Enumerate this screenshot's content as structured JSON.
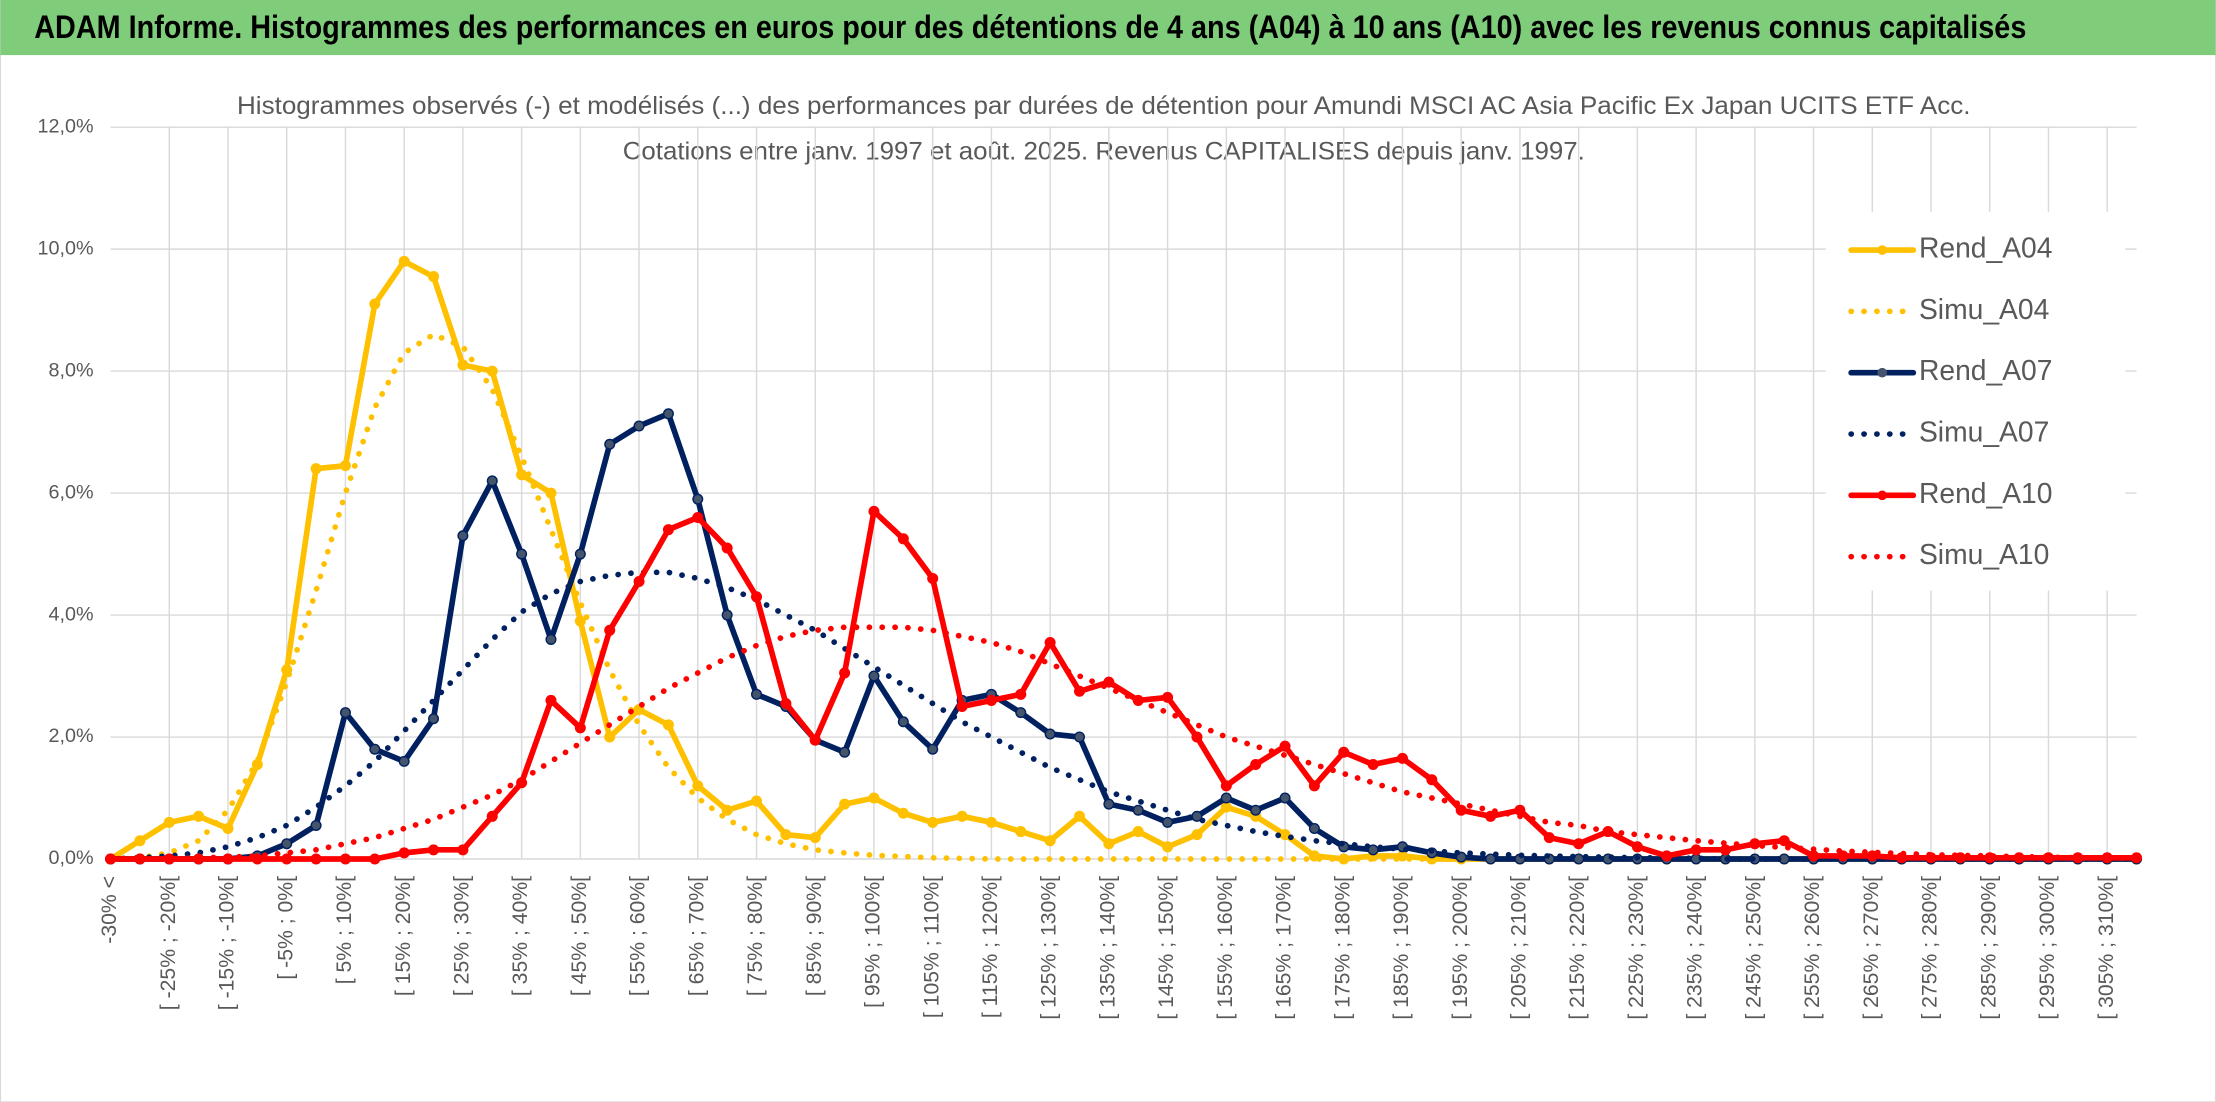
{
  "header": {
    "title": "ADAM Informe. Histogrammes des performances en euros pour des détentions de 4 ans (A04) à 10 ans (A10) avec les revenus connus capitalisés"
  },
  "chart_data": {
    "type": "line",
    "title": "Histogrammes observés (-) et modélisés (...) des performances par durées de détention pour Amundi MSCI AC Asia Pacific Ex Japan UCITS ETF Acc.",
    "subtitle": "Cotations entre janv. 1997 et août. 2025. Revenus CAPITALISES depuis janv. 1997.",
    "categories": [
      "-30% <",
      null,
      "[ -25% ; -20%[",
      null,
      "[ -15% ; -10%[",
      null,
      "[ -5% ; 0%[",
      null,
      "[ 5% ; 10%[",
      null,
      "[ 15% ; 20%[",
      null,
      "[ 25% ; 30%[",
      null,
      "[ 35% ; 40%[",
      null,
      "[ 45% ; 50%[",
      null,
      "[ 55% ; 60%[",
      null,
      "[ 65% ; 70%[",
      null,
      "[ 75% ; 80%[",
      null,
      "[ 85% ; 90%[",
      null,
      "[ 95% ; 100%[",
      null,
      "[ 105% ; 110%[",
      null,
      "[ 115% ; 120%[",
      null,
      "[ 125% ; 130%[",
      null,
      "[ 135% ; 140%[",
      null,
      "[ 145% ; 150%[",
      null,
      "[ 155% ; 160%[",
      null,
      "[ 165% ; 170%[",
      null,
      "[ 175% ; 180%[",
      null,
      "[ 185% ; 190%[",
      null,
      "[ 195% ; 200%[",
      null,
      "[ 205% ; 210%[",
      null,
      "[ 215% ; 220%[",
      null,
      "[ 225% ; 230%[",
      null,
      "[ 235% ; 240%[",
      null,
      "[ 245% ; 250%[",
      null,
      "[ 255% ; 260%[",
      null,
      "[ 265% ; 270%[",
      null,
      "[ 275% ; 280%[",
      null,
      "[ 285% ; 290%[",
      null,
      "[ 295% ; 300%[",
      null,
      "[ 305% ; 310%[",
      null
    ],
    "ylim": [
      0,
      12
    ],
    "yticks": [
      {
        "value": 0,
        "label": "0,0%"
      },
      {
        "value": 2,
        "label": "2,0%"
      },
      {
        "value": 4,
        "label": "4,0%"
      },
      {
        "value": 6,
        "label": "6,0%"
      },
      {
        "value": 8,
        "label": "8,0%"
      },
      {
        "value": 10,
        "label": "10,0%"
      },
      {
        "value": 12,
        "label": "12,0%"
      }
    ],
    "grid": true,
    "legend": "right",
    "series": [
      {
        "name": "Rend_A04",
        "color": "#FFC000",
        "line_style": "solid",
        "markers": true,
        "values": [
          0,
          0.3,
          0.6,
          0.7,
          0.5,
          1.55,
          3.1,
          6.4,
          6.45,
          9.1,
          9.8,
          9.55,
          8.1,
          8.0,
          6.3,
          6.0,
          3.9,
          2.0,
          2.45,
          2.2,
          1.2,
          0.8,
          0.95,
          0.4,
          0.35,
          0.9,
          1.0,
          0.75,
          0.6,
          0.7,
          0.6,
          0.45,
          0.3,
          0.7,
          0.25,
          0.45,
          0.2,
          0.4,
          0.85,
          0.7,
          0.4,
          0.05,
          0,
          0.05,
          0.05,
          0,
          0,
          0,
          0,
          0,
          0,
          0,
          0,
          0,
          0,
          0,
          0,
          0,
          0,
          0,
          0,
          0,
          0,
          0,
          0,
          0,
          0,
          0,
          0,
          0
        ]
      },
      {
        "name": "Simu_A04",
        "color": "#FFC000",
        "line_style": "dotted",
        "markers": false,
        "values": [
          0,
          0.02,
          0.1,
          0.3,
          0.8,
          1.6,
          2.9,
          4.4,
          6.0,
          7.4,
          8.3,
          8.6,
          8.4,
          7.7,
          6.6,
          5.4,
          4.2,
          3.1,
          2.2,
          1.5,
          1.0,
          0.65,
          0.4,
          0.25,
          0.15,
          0.1,
          0.06,
          0.04,
          0.02,
          0.01,
          0,
          0,
          0,
          0,
          0,
          0,
          0,
          0,
          0,
          0,
          0,
          0,
          0,
          0,
          0,
          0,
          0,
          0,
          0,
          0,
          0,
          0,
          0,
          0,
          0,
          0,
          0,
          0,
          0,
          0,
          0,
          0,
          0,
          0,
          0,
          0,
          0,
          0,
          0,
          0
        ]
      },
      {
        "name": "Rend_A07",
        "color": "#002060",
        "line_style": "solid",
        "markers": true,
        "values": [
          0,
          0,
          0,
          0,
          0,
          0.05,
          0.25,
          0.55,
          2.4,
          1.8,
          1.6,
          2.3,
          5.3,
          6.2,
          5.0,
          3.6,
          5.0,
          6.8,
          7.1,
          7.3,
          5.9,
          4.0,
          2.7,
          2.5,
          1.95,
          1.75,
          3.0,
          2.25,
          1.8,
          2.6,
          2.7,
          2.4,
          2.05,
          2.0,
          0.9,
          0.8,
          0.6,
          0.7,
          1.0,
          0.8,
          1.0,
          0.5,
          0.2,
          0.15,
          0.2,
          0.1,
          0.03,
          0,
          0,
          0,
          0,
          0,
          0,
          0,
          0,
          0,
          0,
          0,
          0,
          0,
          0,
          0,
          0,
          0,
          0,
          0,
          0,
          0,
          0,
          0
        ]
      },
      {
        "name": "Simu_A07",
        "color": "#002060",
        "line_style": "dotted",
        "markers": false,
        "values": [
          0,
          0.02,
          0.05,
          0.1,
          0.2,
          0.35,
          0.55,
          0.85,
          1.2,
          1.6,
          2.1,
          2.6,
          3.1,
          3.6,
          4.05,
          4.35,
          4.55,
          4.65,
          4.7,
          4.7,
          4.6,
          4.45,
          4.25,
          4.0,
          3.75,
          3.45,
          3.15,
          2.85,
          2.55,
          2.25,
          2.0,
          1.75,
          1.5,
          1.3,
          1.1,
          0.95,
          0.8,
          0.65,
          0.55,
          0.45,
          0.37,
          0.3,
          0.25,
          0.2,
          0.16,
          0.13,
          0.1,
          0.08,
          0.06,
          0.05,
          0.04,
          0.03,
          0.02,
          0.02,
          0.01,
          0,
          0,
          0,
          0,
          0,
          0,
          0,
          0,
          0,
          0,
          0,
          0,
          0,
          0,
          0
        ]
      },
      {
        "name": "Rend_A10",
        "color": "#FF0000",
        "line_style": "solid",
        "markers": true,
        "values": [
          0,
          0,
          0,
          0,
          0,
          0,
          0,
          0,
          0,
          0,
          0.1,
          0.15,
          0.15,
          0.7,
          1.25,
          2.6,
          2.15,
          3.75,
          4.55,
          5.4,
          5.6,
          5.1,
          4.3,
          2.55,
          1.95,
          3.05,
          5.7,
          5.25,
          4.6,
          2.5,
          2.6,
          2.7,
          3.55,
          2.75,
          2.9,
          2.6,
          2.65,
          2.0,
          1.2,
          1.55,
          1.85,
          1.2,
          1.75,
          1.55,
          1.65,
          1.3,
          0.8,
          0.7,
          0.8,
          0.35,
          0.25,
          0.45,
          0.2,
          0.05,
          0.15,
          0.15,
          0.25,
          0.3,
          0.05,
          0.05,
          0.05,
          0.02,
          0.02,
          0.02,
          0.02,
          0.02,
          0.02,
          0.02,
          0.02,
          0.02
        ]
      },
      {
        "name": "Simu_A10",
        "color": "#FF0000",
        "line_style": "dotted",
        "markers": false,
        "values": [
          0,
          0,
          0,
          0.02,
          0.03,
          0.05,
          0.1,
          0.15,
          0.25,
          0.35,
          0.5,
          0.65,
          0.85,
          1.05,
          1.3,
          1.6,
          1.9,
          2.2,
          2.5,
          2.8,
          3.05,
          3.3,
          3.5,
          3.65,
          3.75,
          3.8,
          3.8,
          3.8,
          3.75,
          3.65,
          3.55,
          3.4,
          3.2,
          3.0,
          2.8,
          2.6,
          2.4,
          2.2,
          2.0,
          1.85,
          1.7,
          1.55,
          1.4,
          1.25,
          1.1,
          1.0,
          0.9,
          0.8,
          0.7,
          0.6,
          0.55,
          0.45,
          0.4,
          0.35,
          0.3,
          0.26,
          0.22,
          0.19,
          0.16,
          0.13,
          0.11,
          0.09,
          0.07,
          0.06,
          0.05,
          0.04,
          0.03,
          0.02,
          0.02,
          0.01
        ]
      }
    ]
  }
}
